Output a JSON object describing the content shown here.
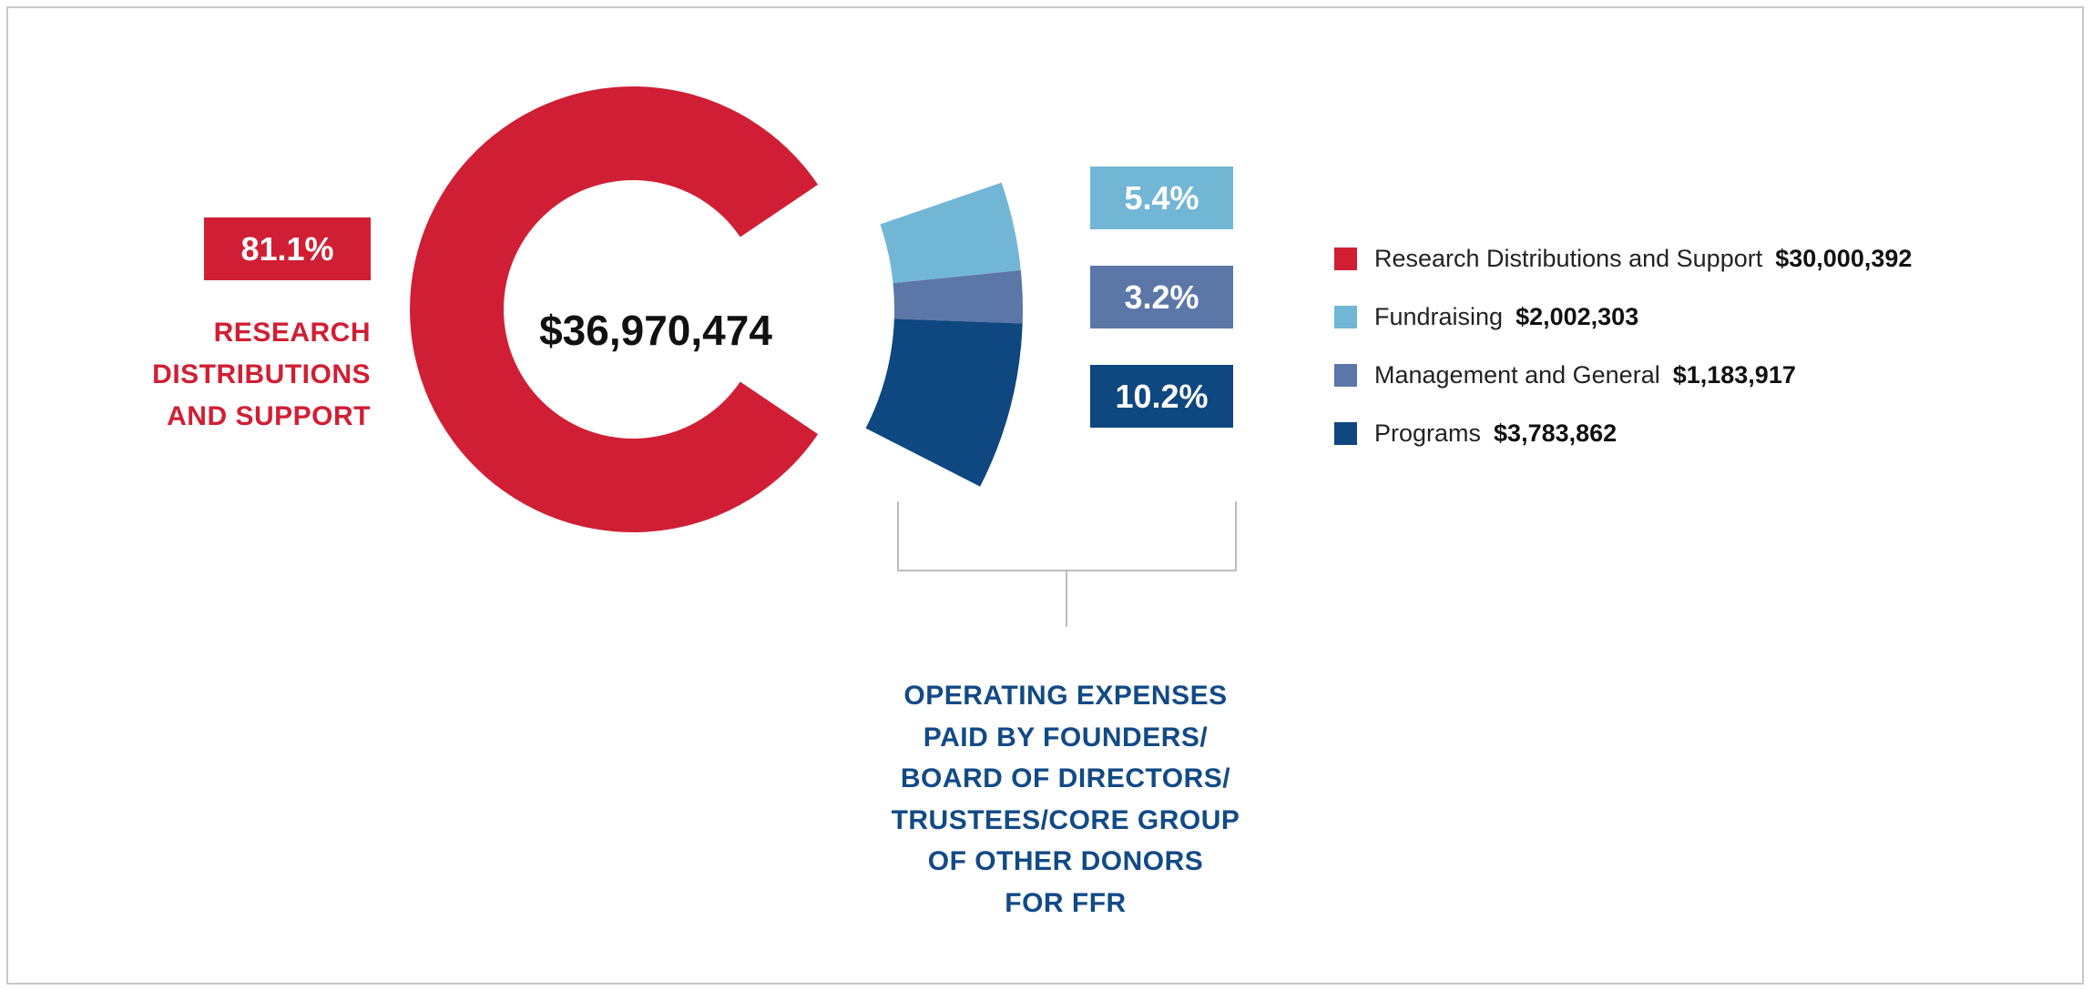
{
  "chart_data": {
    "type": "pie",
    "title": "",
    "total_label": "$36,970,474",
    "categories": [
      "Research Distributions and Support",
      "Fundraising",
      "Management and General",
      "Programs"
    ],
    "values": [
      30000392,
      2002303,
      1183917,
      3783862
    ],
    "value_labels": [
      "$30,000,392",
      "$2,002,303",
      "$1,183,917",
      "$3,783,862"
    ],
    "percent_labels": [
      "81.1%",
      "5.4%",
      "3.2%",
      "10.2%"
    ],
    "percents": [
      81.1,
      5.4,
      3.2,
      10.2
    ],
    "colors": [
      "#d01f34",
      "#72b6d6",
      "#5b77a8",
      "#0f4780"
    ],
    "legend_position": "right"
  },
  "labels": {
    "research_lines": [
      "RESEARCH",
      "DISTRIBUTIONS",
      "AND SUPPORT"
    ],
    "operating_lines": [
      "OPERATING EXPENSES",
      "PAID BY FOUNDERS/",
      "BOARD OF DIRECTORS/",
      "TRUSTEES/CORE GROUP",
      "OF OTHER DONORS",
      "FOR FFR"
    ]
  }
}
